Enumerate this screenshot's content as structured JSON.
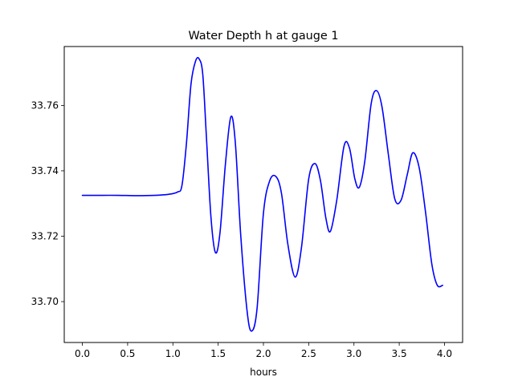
{
  "chart_data": {
    "type": "line",
    "title": "Water Depth h at gauge 1",
    "xlabel": "hours",
    "ylabel": "",
    "xlim": [
      -0.2,
      4.2
    ],
    "ylim": [
      33.6875,
      33.778
    ],
    "xticks": [
      0.0,
      0.5,
      1.0,
      1.5,
      2.0,
      2.5,
      3.0,
      3.5,
      4.0
    ],
    "xtick_labels": [
      "0.0",
      "0.5",
      "1.0",
      "1.5",
      "2.0",
      "2.5",
      "3.0",
      "3.5",
      "4.0"
    ],
    "yticks": [
      33.7,
      33.72,
      33.74,
      33.76
    ],
    "ytick_labels": [
      "33.70",
      "33.72",
      "33.74",
      "33.76"
    ],
    "grid": false,
    "series": [
      {
        "color": "#0000ff",
        "x": [
          0.0,
          0.2,
          0.4,
          0.6,
          0.8,
          0.95,
          1.05,
          1.1,
          1.15,
          1.2,
          1.25,
          1.29,
          1.33,
          1.37,
          1.42,
          1.47,
          1.52,
          1.58,
          1.64,
          1.69,
          1.75,
          1.82,
          1.87,
          1.93,
          2.0,
          2.07,
          2.14,
          2.2,
          2.27,
          2.35,
          2.42,
          2.5,
          2.57,
          2.63,
          2.69,
          2.74,
          2.81,
          2.89,
          2.95,
          3.01,
          3.06,
          3.12,
          3.19,
          3.25,
          3.31,
          3.38,
          3.45,
          3.52,
          3.59,
          3.65,
          3.72,
          3.79,
          3.86,
          3.92,
          3.98
        ],
        "y": [
          33.7325,
          33.7325,
          33.7325,
          33.7324,
          33.7325,
          33.7328,
          33.7335,
          33.7355,
          33.7485,
          33.7665,
          33.7735,
          33.7742,
          33.7695,
          33.7505,
          33.726,
          33.715,
          33.721,
          33.742,
          33.7565,
          33.7485,
          33.72,
          33.697,
          33.691,
          33.698,
          33.727,
          33.737,
          33.7382,
          33.733,
          33.7175,
          33.7075,
          33.7165,
          33.7375,
          33.7422,
          33.737,
          33.7255,
          33.7215,
          33.731,
          33.7475,
          33.747,
          33.7375,
          33.735,
          33.743,
          33.7605,
          33.7645,
          33.7595,
          33.745,
          33.7315,
          33.731,
          33.739,
          33.7455,
          33.741,
          33.7275,
          33.7115,
          33.705,
          33.705
        ]
      }
    ]
  }
}
